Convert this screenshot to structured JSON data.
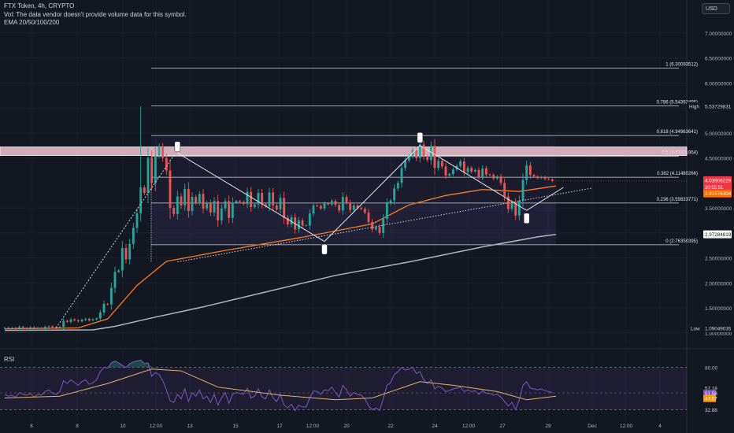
{
  "header": {
    "symbol_line": "FTX Token, 4h, CRYPTO",
    "volume_note": "Vol: The data vendor doesn't provide volume data for this symbol.",
    "ema_line": "EMA 20/50/100/200",
    "currency_button": "USD"
  },
  "rsi_title": "RSI",
  "colors": {
    "background": "#131722",
    "up": "#26a69a",
    "down": "#ef5350",
    "ema_orange": "#ff7a1a",
    "ema_gray": "#b2b5be",
    "price_tag": "#f23645",
    "orange_tag": "#ff6d00",
    "rsi_line": "#7e57c2",
    "rsi_ma": "#e3b26f",
    "resistance_zone": "#f7c6d4"
  },
  "chart_data": [
    {
      "type": "candlestick",
      "y_scale": "linear",
      "ylim": [
        0.95,
        7.3
      ],
      "x_ticks": [
        "6",
        "8",
        "10",
        "12:00",
        "13",
        "15",
        "17",
        "12:00",
        "20",
        "22",
        "24",
        "12:00",
        "27",
        "29",
        "Dec",
        "12:00",
        "4"
      ],
      "y_ticks": [
        "7.00000000",
        "6.50000000",
        "6.00000000",
        "5.50000000",
        "5.00000000",
        "4.50000000",
        "3.50000000",
        "3.00000000",
        "2.50000000",
        "2.00000000",
        "1.50000000",
        "1.00000000"
      ],
      "close": [
        1.1,
        1.09,
        1.1,
        1.08,
        1.12,
        1.1,
        1.09,
        1.11,
        1.08,
        1.1,
        1.09,
        1.12,
        1.13,
        1.11,
        1.1,
        1.12,
        1.24,
        1.22,
        1.27,
        1.25,
        1.23,
        1.26,
        1.28,
        1.25,
        1.27,
        1.29,
        1.41,
        1.58,
        1.57,
        1.9,
        2.22,
        2.25,
        2.7,
        2.47,
        2.78,
        3.1,
        3.39,
        3.91,
        3.8,
        4.5,
        4.0,
        4.55,
        4.72,
        4.5,
        4.25,
        3.5,
        3.38,
        3.73,
        3.55,
        3.88,
        3.44,
        3.72,
        3.61,
        3.78,
        3.49,
        3.6,
        3.41,
        3.64,
        3.25,
        3.49,
        3.64,
        3.3,
        3.61,
        3.64,
        3.62,
        3.58,
        3.82,
        3.52,
        3.57,
        3.8,
        3.57,
        3.53,
        3.81,
        3.55,
        3.47,
        3.7,
        3.3,
        3.17,
        3.31,
        3.07,
        3.25,
        3.15,
        3.15,
        3.39,
        3.55,
        3.54,
        3.49,
        3.59,
        3.57,
        3.64,
        3.56,
        3.45,
        3.72,
        3.61,
        3.46,
        3.55,
        3.5,
        3.48,
        3.41,
        3.22,
        3.07,
        3.12,
        3.0,
        3.28,
        3.59,
        3.65,
        3.89,
        4.0,
        4.3,
        4.45,
        4.54,
        4.66,
        4.5,
        4.77,
        4.54,
        4.46,
        4.74,
        4.3,
        4.44,
        4.33,
        4.15,
        4.18,
        4.27,
        4.34,
        4.43,
        4.22,
        4.3,
        4.23,
        4.26,
        4.12,
        4.29,
        4.17,
        4.16,
        4.09,
        4.13,
        4.0,
        3.73,
        3.48,
        3.61,
        3.35,
        3.65,
        4.06,
        4.35,
        4.16,
        4.13,
        4.1,
        4.12,
        4.08,
        4.07,
        4.04
      ],
      "current_price": "4.03906229",
      "countdown": "20:55:51",
      "right_tags": {
        "high_label": "High",
        "high_value": "5.53729831",
        "low_label": "Low",
        "low_value": "1.09049035",
        "ema_value": "3.91576304",
        "ema200_value": "2.97284819"
      },
      "fibonacci": [
        {
          "label": "1 (6.30093512)",
          "value": 6.30093512
        },
        {
          "label": "0.786 (5.54392495)",
          "value": 5.54392495
        },
        {
          "label": "0.618 (4.94963641)",
          "value": 4.94963641
        },
        {
          "label": "0.5 (4.53221954)",
          "value": 4.53221954
        },
        {
          "label": "0.382 (4.11480266)",
          "value": 4.11480266
        },
        {
          "label": "0.236 (3.59833771)",
          "value": 3.59833771
        },
        {
          "label": "0 (2.76350395)",
          "value": 2.76350395
        }
      ],
      "resistance_zone": [
        4.55,
        4.72
      ],
      "ema_orange_points": [
        [
          0,
          1.08
        ],
        [
          20,
          1.1
        ],
        [
          28,
          1.28
        ],
        [
          36,
          1.95
        ],
        [
          44,
          2.43
        ],
        [
          60,
          2.65
        ],
        [
          80,
          2.9
        ],
        [
          100,
          3.18
        ],
        [
          110,
          3.56
        ],
        [
          120,
          3.75
        ],
        [
          130,
          3.87
        ],
        [
          140,
          3.83
        ],
        [
          150,
          3.94
        ]
      ],
      "ema_gray_points": [
        [
          0,
          1.05
        ],
        [
          24,
          1.06
        ],
        [
          30,
          1.13
        ],
        [
          40,
          1.3
        ],
        [
          54,
          1.52
        ],
        [
          70,
          1.8
        ],
        [
          90,
          2.15
        ],
        [
          110,
          2.42
        ],
        [
          130,
          2.72
        ],
        [
          145,
          2.92
        ],
        [
          150,
          2.97
        ]
      ],
      "pattern_lines": [
        [
          [
            47,
            4.6
          ],
          [
            87,
            2.83
          ]
        ],
        [
          [
            87,
            2.83
          ],
          [
            113,
            4.75
          ]
        ],
        [
          [
            113,
            4.75
          ],
          [
            142,
            3.45
          ]
        ],
        [
          [
            142,
            3.45
          ],
          [
            152,
            3.91
          ]
        ]
      ],
      "pattern_markers": [
        [
          47,
          4.6
        ],
        [
          87,
          2.83
        ],
        [
          113,
          4.75
        ],
        [
          142,
          3.45
        ]
      ],
      "trend_line": [
        [
          47,
          2.42
        ],
        [
          160,
          3.9
        ]
      ],
      "dotted_rally": [
        [
          14,
          1.1
        ],
        [
          46,
          4.55
        ]
      ]
    },
    {
      "type": "line",
      "title": "RSI",
      "ylim": [
        25,
        90
      ],
      "y_ticks": [
        "80.00"
      ],
      "tags": {
        "upper": "57.18",
        "rsi": "51.58",
        "ma": "47.57",
        "lower": "32.88"
      },
      "rsi": [
        50,
        48,
        49,
        47,
        52,
        50,
        49,
        51,
        47,
        50,
        49,
        53,
        55,
        51,
        50,
        53,
        65,
        62,
        66,
        63,
        60,
        64,
        66,
        61,
        63,
        66,
        75,
        80,
        79,
        85,
        87,
        85,
        82,
        80,
        84,
        86,
        87,
        88,
        84,
        85,
        70,
        74,
        72,
        65,
        55,
        43,
        41,
        50,
        45,
        56,
        42,
        52,
        48,
        55,
        45,
        48,
        41,
        50,
        38,
        46,
        52,
        40,
        50,
        52,
        51,
        50,
        57,
        46,
        48,
        56,
        47,
        45,
        55,
        46,
        42,
        50,
        38,
        35,
        39,
        32,
        38,
        36,
        36,
        46,
        54,
        53,
        50,
        55,
        54,
        58,
        52,
        47,
        60,
        55,
        48,
        52,
        50,
        49,
        45,
        37,
        33,
        35,
        32,
        45,
        60,
        63,
        72,
        75,
        80,
        77,
        78,
        80,
        73,
        75,
        66,
        62,
        66,
        56,
        59,
        57,
        53,
        54,
        56,
        57,
        58,
        53,
        55,
        53,
        54,
        50,
        54,
        51,
        51,
        49,
        50,
        47,
        42,
        37,
        41,
        33,
        44,
        60,
        64,
        57,
        56,
        55,
        56,
        54,
        53,
        52
      ],
      "rsi_ma_points": [
        [
          0,
          46
        ],
        [
          15,
          48
        ],
        [
          28,
          62
        ],
        [
          40,
          78
        ],
        [
          48,
          76
        ],
        [
          58,
          58
        ],
        [
          75,
          49
        ],
        [
          90,
          44
        ],
        [
          100,
          46
        ],
        [
          113,
          64
        ],
        [
          122,
          60
        ],
        [
          134,
          53
        ],
        [
          142,
          44
        ],
        [
          150,
          48
        ]
      ]
    }
  ]
}
